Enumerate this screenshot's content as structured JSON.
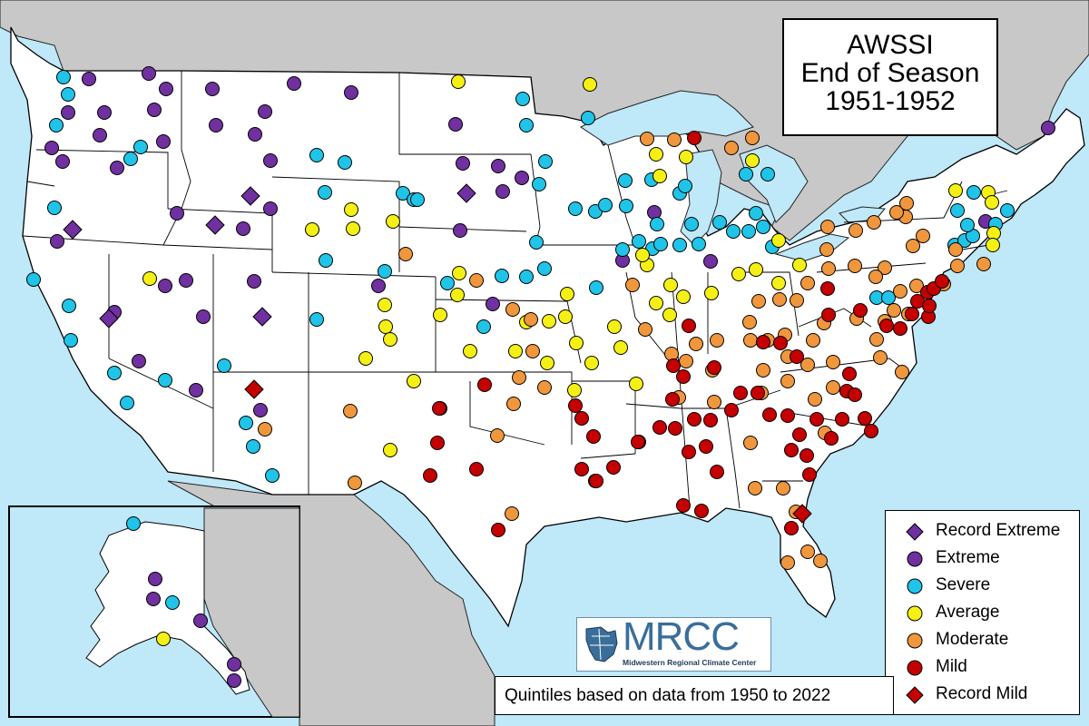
{
  "title": {
    "line1": "AWSSI",
    "line2": "End of Season",
    "line3": "1951-1952"
  },
  "legend": [
    {
      "label": "Record Extreme",
      "marker": "diamond",
      "color": "#7030a0"
    },
    {
      "label": "Extreme",
      "marker": "circle",
      "color": "#7030a0"
    },
    {
      "label": "Severe",
      "marker": "circle",
      "color": "#1fc4e8"
    },
    {
      "label": "Average",
      "marker": "circle",
      "color": "#f5f014"
    },
    {
      "label": "Moderate",
      "marker": "circle",
      "color": "#f0963c"
    },
    {
      "label": "Mild",
      "marker": "circle",
      "color": "#c40000"
    },
    {
      "label": "Record Mild",
      "marker": "diamond",
      "color": "#c40000"
    }
  ],
  "footnote": "Quintiles based on data from 1950 to 2022",
  "logo": {
    "name": "MRCC",
    "subtitle": "Midwestern Regional Climate Center"
  },
  "colors": {
    "water": "#bfe8f8",
    "land_foreign": "#c8c8c8",
    "land_us": "#ffffff"
  },
  "map_layers": [
    "US states",
    "Canada",
    "Mexico",
    "Alaska inset",
    "Great Lakes"
  ]
}
